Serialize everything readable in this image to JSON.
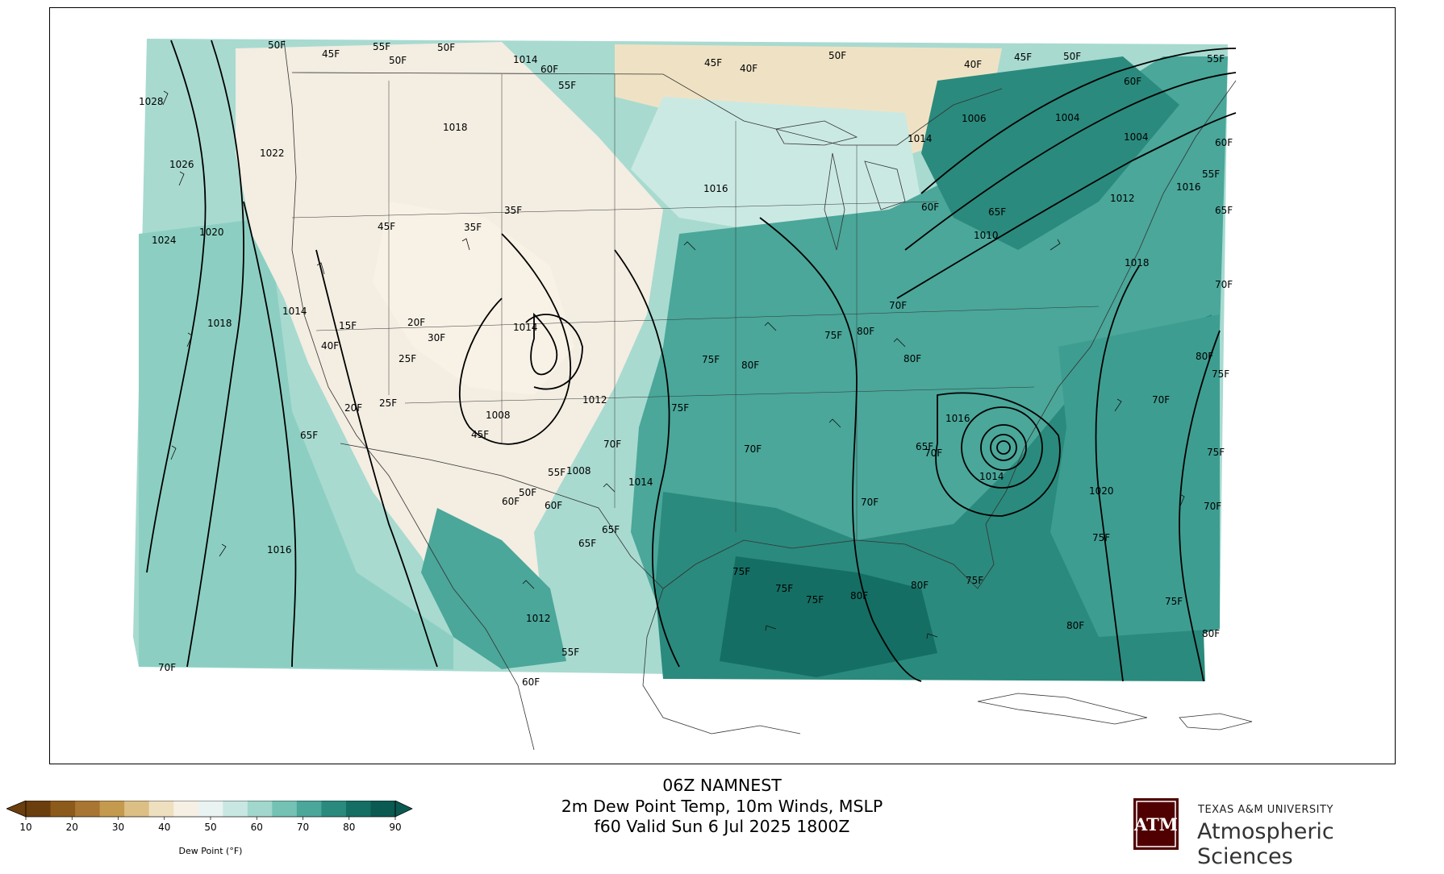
{
  "title": {
    "line1": "06Z NAMNEST",
    "line2": "2m Dew Point Temp, 10m Winds, MSLP",
    "line3": "f60 Valid Sun 6 Jul 2025 1800Z"
  },
  "colorbar": {
    "label": "Dew Point (°F)",
    "ticks": [
      "10",
      "20",
      "30",
      "40",
      "50",
      "60",
      "70",
      "80",
      "90"
    ],
    "colors": [
      "#6b3e0d",
      "#8c5a1b",
      "#a87532",
      "#c49a4f",
      "#dcbf85",
      "#eedfbf",
      "#f6efe4",
      "#e9f3f1",
      "#c9e7e2",
      "#a1d7cd",
      "#74c2b4",
      "#4aa79a",
      "#2a8a7d",
      "#146e63",
      "#0a5a51"
    ]
  },
  "logo": {
    "university": "TEXAS A&M UNIVERSITY",
    "department": "Atmospheric Sciences",
    "mark": "ATM"
  },
  "map": {
    "pressure_labels": [
      "1028",
      "1026",
      "1024",
      "1022",
      "1020",
      "1018",
      "1018",
      "1016",
      "1014",
      "1014",
      "1014",
      "1012",
      "1012",
      "1010",
      "1008",
      "1006",
      "1004",
      "1004",
      "1016",
      "1020",
      "1018",
      "1016",
      "1014",
      "1012",
      "1008",
      "1014",
      "1014",
      "1016"
    ],
    "dewpoint_labels": [
      "50F",
      "45F",
      "55F",
      "50F",
      "60F",
      "55F",
      "40F",
      "50F",
      "45F",
      "40F",
      "60F",
      "55F",
      "50F",
      "45F",
      "50F",
      "55F",
      "60F",
      "65F",
      "70F",
      "75F",
      "80F",
      "75F",
      "70F",
      "65F",
      "60F",
      "70F",
      "75F",
      "80F",
      "75F",
      "80F",
      "75F",
      "70F",
      "80F",
      "75F",
      "70F",
      "65F",
      "20F",
      "25F",
      "30F",
      "35F",
      "15F",
      "40F",
      "45F",
      "20F",
      "25F",
      "35F",
      "45F",
      "50F",
      "55F",
      "60F",
      "65F",
      "70F",
      "75F",
      "75F",
      "80F",
      "75F",
      "80F",
      "70F",
      "80F",
      "75F",
      "80F",
      "70F",
      "75F",
      "65F",
      "60F",
      "55F",
      "60F",
      "65F",
      "70F"
    ]
  }
}
